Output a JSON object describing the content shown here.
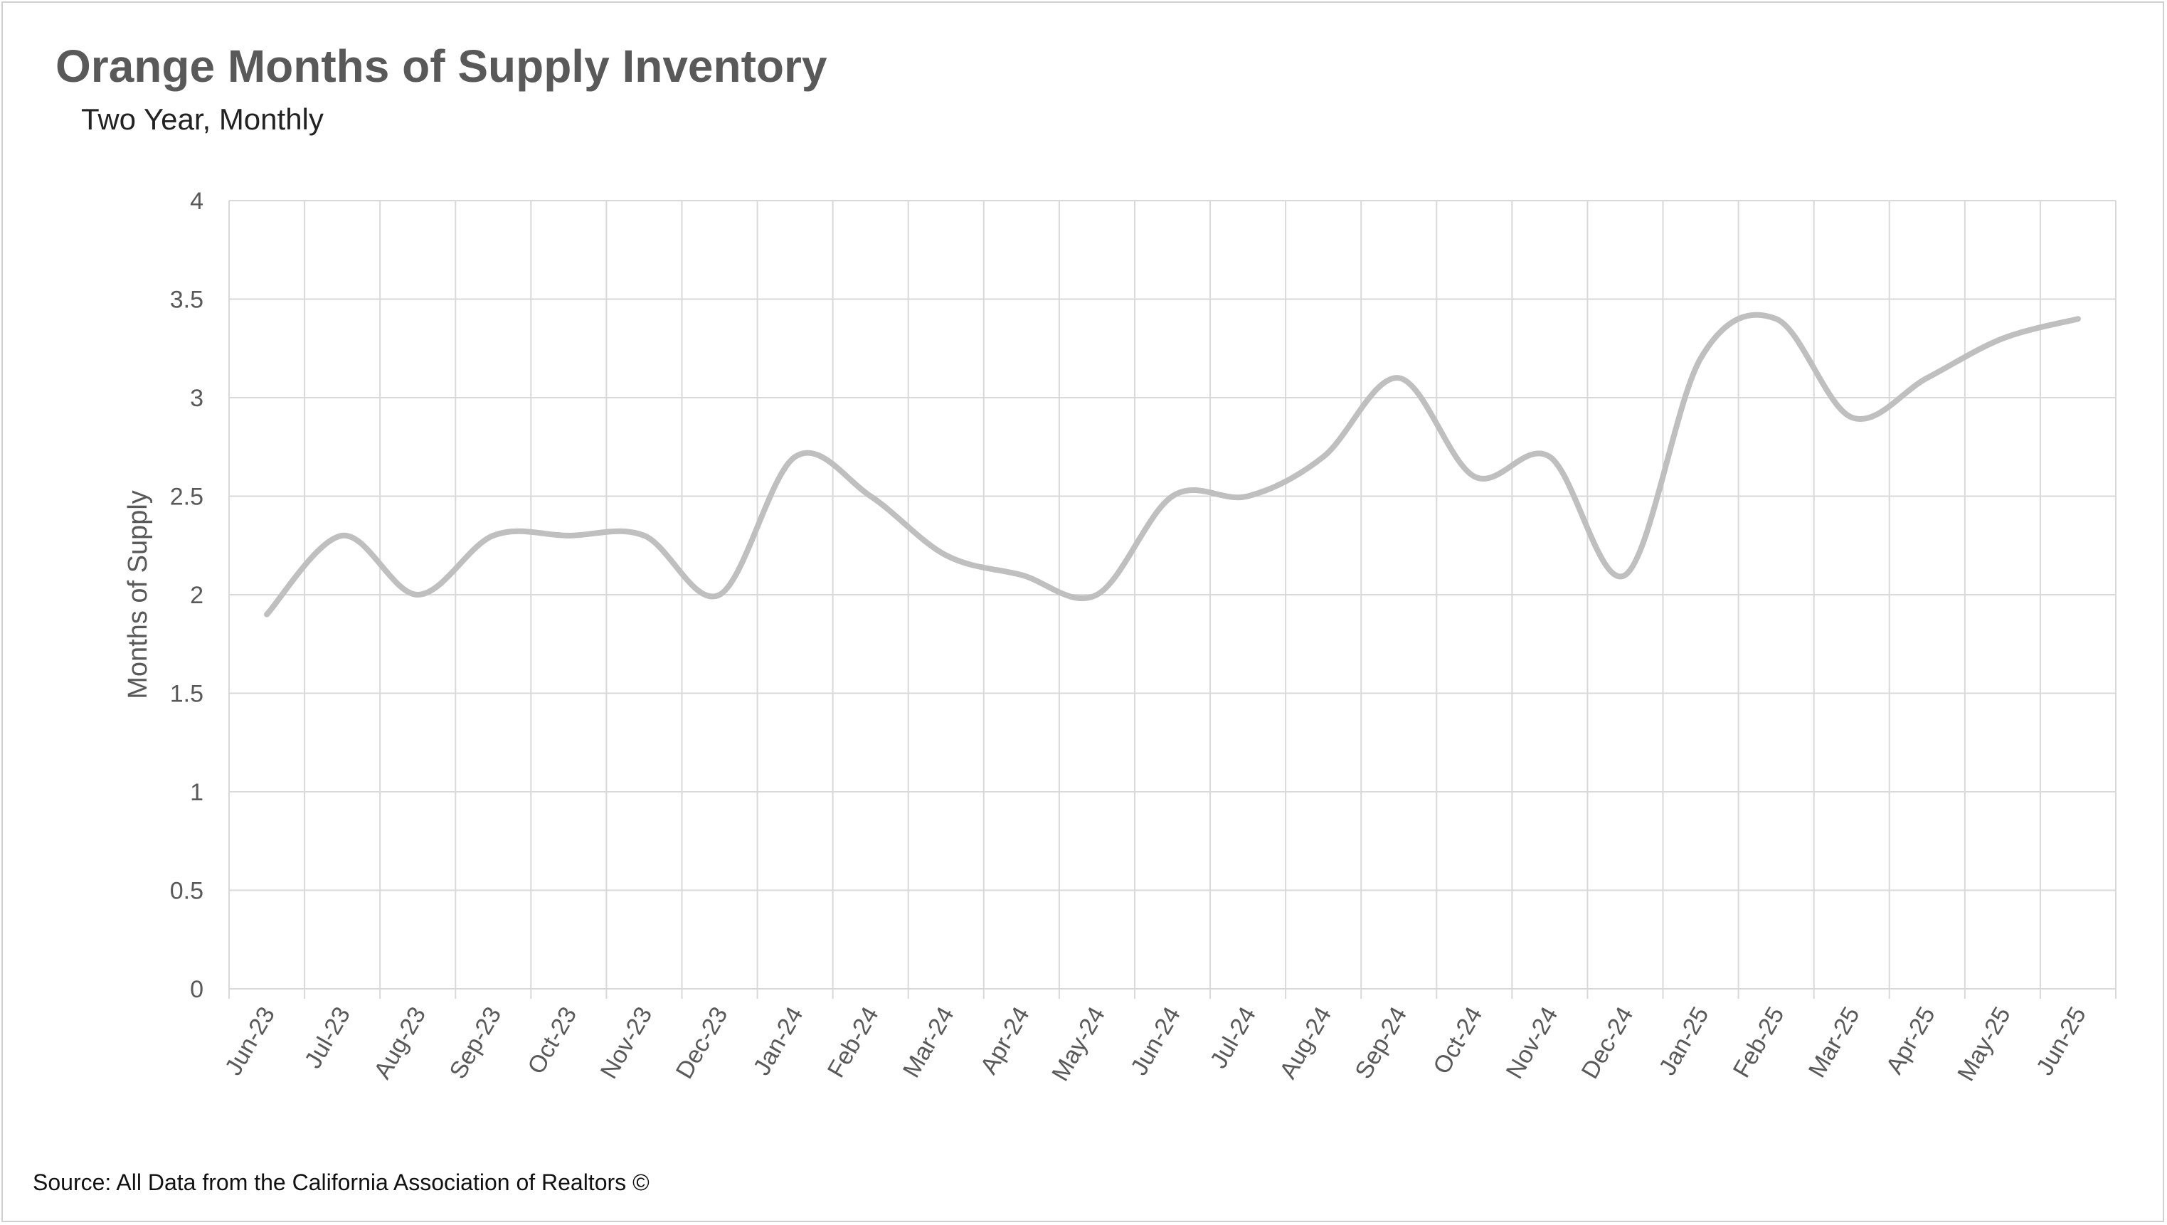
{
  "chart_data": {
    "type": "line",
    "title": "Orange Months of Supply Inventory",
    "subtitle": "Two Year, Monthly",
    "ylabel": "Months of Supply",
    "xlabel": "",
    "ylim": [
      0,
      4
    ],
    "yticks": [
      "0",
      "0.5",
      "1",
      "1.5",
      "2",
      "2.5",
      "3",
      "3.5",
      "4"
    ],
    "grid": true,
    "legend": "none",
    "categories": [
      "Jun-23",
      "Jul-23",
      "Aug-23",
      "Sep-23",
      "Oct-23",
      "Nov-23",
      "Dec-23",
      "Jan-24",
      "Feb-24",
      "Mar-24",
      "Apr-24",
      "May-24",
      "Jun-24",
      "Jul-24",
      "Aug-24",
      "Sep-24",
      "Oct-24",
      "Nov-24",
      "Dec-24",
      "Jan-25",
      "Feb-25",
      "Mar-25",
      "Apr-25",
      "May-25",
      "Jun-25"
    ],
    "series": [
      {
        "values": [
          1.9,
          2.3,
          2.0,
          2.3,
          2.3,
          2.3,
          2.0,
          2.7,
          2.5,
          2.2,
          2.1,
          2.0,
          2.5,
          2.5,
          2.7,
          3.1,
          2.6,
          2.7,
          2.1,
          3.2,
          3.4,
          2.9,
          3.1,
          3.3,
          3.4
        ],
        "color": "#bfbfbf"
      }
    ],
    "gridColor": "#d9d9d9"
  },
  "source": "Source: All Data from the California Association of Realtors ©"
}
